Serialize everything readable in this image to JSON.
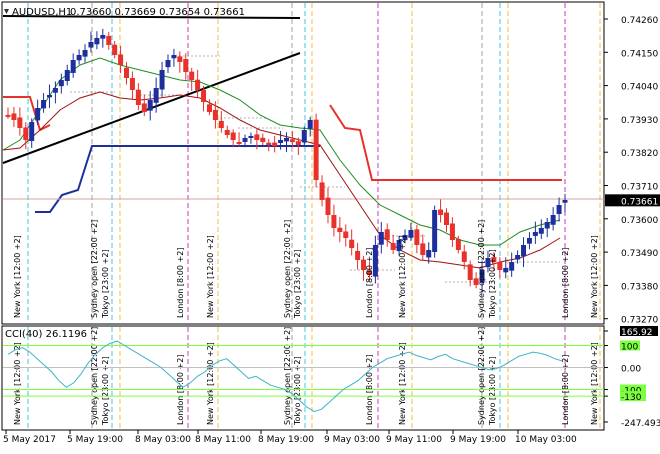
{
  "header": {
    "symbol": "AUDUSD,H1",
    "ohlc": "0.73660 0.73669 0.73654 0.73661"
  },
  "price_axis": {
    "ticks": [
      "0.74260",
      "0.74150",
      "0.74040",
      "0.73930",
      "0.73820",
      "0.73710",
      "0.73600",
      "0.73490",
      "0.73380",
      "0.73270"
    ],
    "current_price": "0.73661"
  },
  "indicator": {
    "label": "CCI(40) 26.1196",
    "ticks": [
      "165.92",
      "100",
      "0.00",
      "-100",
      "-130",
      "-247.4932"
    ]
  },
  "time_axis": {
    "labels": [
      "5 May 2017",
      "5 May 19:00",
      "8 May 03:00",
      "8 May 11:00",
      "8 May 19:00",
      "9 May 03:00",
      "9 May 11:00",
      "9 May 19:00",
      "10 May 03:00"
    ]
  },
  "session_labels": [
    {
      "text": "New York [12:00 +2]"
    },
    {
      "text": "Sydney open [22:00 +2]"
    },
    {
      "text": "Tokyo [23:00 +2]"
    },
    {
      "text": "London [8:00 +2]"
    },
    {
      "text": "New York [12:00 +2]"
    },
    {
      "text": "Sydney open [22:00 +2]"
    },
    {
      "text": "Tokyo [23:00 +2]"
    },
    {
      "text": "London [8:00 +2]"
    },
    {
      "text": "New York [12:00 +2]"
    },
    {
      "text": "Sydney open [22:00 +2]"
    },
    {
      "text": "Tokyo [23:00 +2]"
    },
    {
      "text": "London [8:00 +2]"
    },
    {
      "text": "New York [12:00 +2]"
    }
  ],
  "colors": {
    "bull": "#1c2f9c",
    "bear": "#e8312b",
    "upper_channel": "#e8312b",
    "lower_channel": "#1c2f9c",
    "ma_fast": "#1e8c1e",
    "ma_slow": "#a01010",
    "cci_line": "#3cb4c8",
    "cci_level": "#7cff3c",
    "price_line": "#d9a3a3",
    "vline_cyan": "#46c6d8",
    "vline_magenta": "#c040c0",
    "vline_yellow": "#e8c040",
    "vline_gray": "#a0a0a0"
  }
}
